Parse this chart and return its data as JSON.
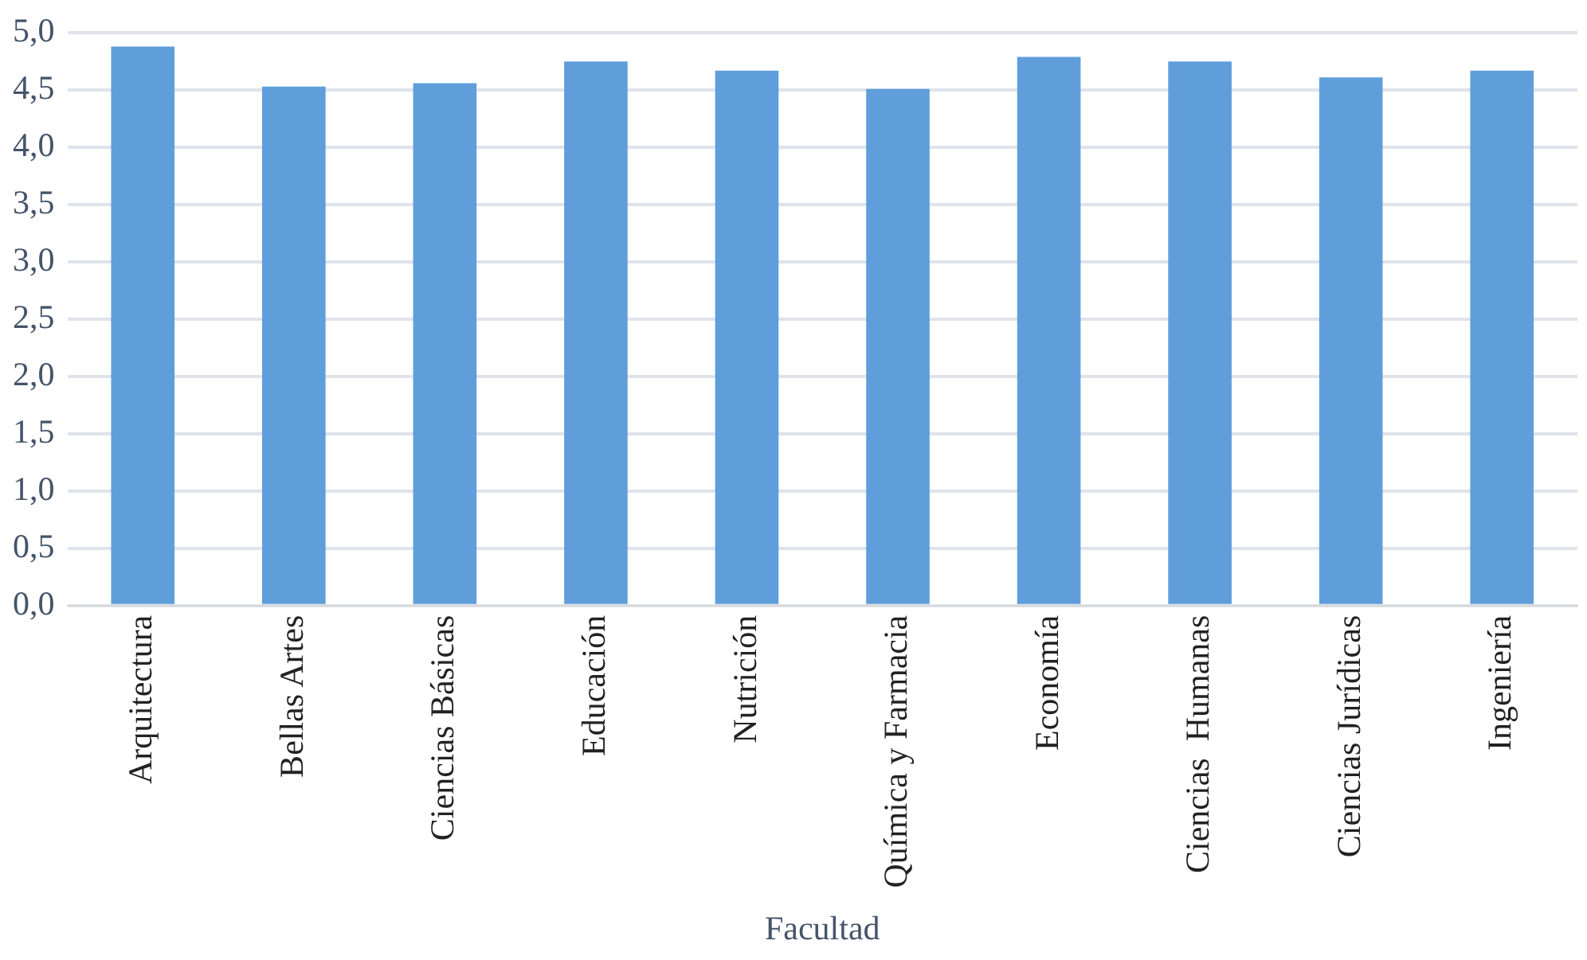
{
  "chart_data": {
    "type": "bar",
    "xlabel": "Facultad",
    "categories": [
      "Arquitectura",
      "Bellas Artes",
      "Ciencias Básicas",
      "Educación",
      "Nutrición",
      "Química y Farmacia",
      "Economía",
      "Ciencias  Humanas",
      "Ciencias Jurídicas",
      "Ingeniería"
    ],
    "values": [
      4.88,
      4.53,
      4.56,
      4.75,
      4.67,
      4.51,
      4.79,
      4.75,
      4.61,
      4.67
    ],
    "color": "#5f9edb",
    "ylim": [
      0,
      5
    ],
    "yticks": [
      {
        "value": 0,
        "label": "0,0"
      },
      {
        "value": 0.5,
        "label": "0,5"
      },
      {
        "value": 1,
        "label": "1,0"
      },
      {
        "value": 1.5,
        "label": "1,5"
      },
      {
        "value": 2,
        "label": "2,0"
      },
      {
        "value": 2.5,
        "label": "2,5"
      },
      {
        "value": 3,
        "label": "3,0"
      },
      {
        "value": 3.5,
        "label": "3,5"
      },
      {
        "value": 4,
        "label": "4,0"
      },
      {
        "value": 4.5,
        "label": "4,5"
      },
      {
        "value": 5,
        "label": "5,0"
      }
    ],
    "grid": "y",
    "legend": false
  }
}
